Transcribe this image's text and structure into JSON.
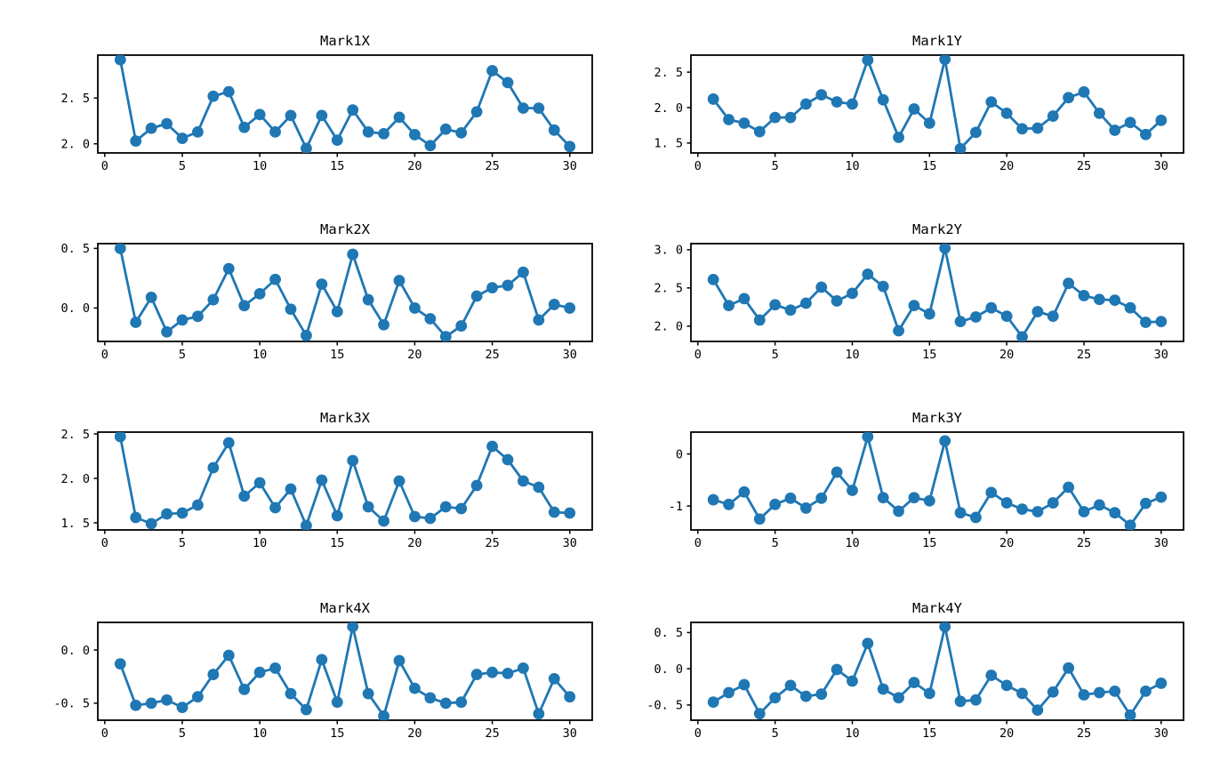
{
  "figure": {
    "background": "#ffffff",
    "spine_color": "#000000",
    "accent_color": "#1f77b4"
  },
  "chart_data": [
    {
      "type": "line",
      "title": "Mark1X",
      "xlabel": "",
      "ylabel": "",
      "grid": false,
      "legend": "none",
      "marker": "circle",
      "line_color": "#1f77b4",
      "x": [
        1,
        2,
        3,
        4,
        5,
        6,
        7,
        8,
        9,
        10,
        11,
        12,
        13,
        14,
        15,
        16,
        17,
        18,
        19,
        20,
        21,
        22,
        23,
        24,
        25,
        26,
        27,
        28,
        29,
        30
      ],
      "values": [
        2.92,
        2.03,
        2.17,
        2.22,
        2.06,
        2.13,
        2.52,
        2.57,
        2.18,
        2.32,
        2.13,
        2.31,
        1.95,
        2.31,
        2.04,
        2.37,
        2.13,
        2.11,
        2.29,
        2.1,
        1.98,
        2.16,
        2.12,
        2.35,
        2.8,
        2.67,
        2.39,
        2.39,
        2.15,
        1.97
      ],
      "xlim": [
        -0.45,
        31.45
      ],
      "ylim": [
        1.9,
        2.97
      ],
      "xticks": {
        "values": [
          0,
          5,
          10,
          15,
          20,
          25,
          30
        ],
        "labels": [
          "0",
          "5",
          "10",
          "15",
          "20",
          "25",
          "30"
        ]
      },
      "yticks": {
        "values": [
          2.0,
          2.5
        ],
        "labels": [
          "2. 0",
          "2. 5"
        ]
      }
    },
    {
      "type": "line",
      "title": "Mark1Y",
      "xlabel": "",
      "ylabel": "",
      "grid": false,
      "legend": "none",
      "marker": "circle",
      "line_color": "#1f77b4",
      "x": [
        1,
        2,
        3,
        4,
        5,
        6,
        7,
        8,
        9,
        10,
        11,
        12,
        13,
        14,
        15,
        16,
        17,
        18,
        19,
        20,
        21,
        22,
        23,
        24,
        25,
        26,
        27,
        28,
        29,
        30
      ],
      "values": [
        2.12,
        1.83,
        1.78,
        1.66,
        1.86,
        1.86,
        2.05,
        2.18,
        2.08,
        2.05,
        2.67,
        2.11,
        1.58,
        1.98,
        1.78,
        2.68,
        1.42,
        1.65,
        2.08,
        1.92,
        1.7,
        1.71,
        1.88,
        2.14,
        2.22,
        1.92,
        1.68,
        1.79,
        1.62,
        1.82
      ],
      "xlim": [
        -0.45,
        31.45
      ],
      "ylim": [
        1.36,
        2.74
      ],
      "xticks": {
        "values": [
          0,
          5,
          10,
          15,
          20,
          25,
          30
        ],
        "labels": [
          "0",
          "5",
          "10",
          "15",
          "20",
          "25",
          "30"
        ]
      },
      "yticks": {
        "values": [
          1.5,
          2.0,
          2.5
        ],
        "labels": [
          "1. 5",
          "2. 0",
          "2. 5"
        ]
      }
    },
    {
      "type": "line",
      "title": "Mark2X",
      "xlabel": "",
      "ylabel": "",
      "grid": false,
      "legend": "none",
      "marker": "circle",
      "line_color": "#1f77b4",
      "x": [
        1,
        2,
        3,
        4,
        5,
        6,
        7,
        8,
        9,
        10,
        11,
        12,
        13,
        14,
        15,
        16,
        17,
        18,
        19,
        20,
        21,
        22,
        23,
        24,
        25,
        26,
        27,
        28,
        29,
        30
      ],
      "values": [
        0.5,
        -0.12,
        0.09,
        -0.2,
        -0.1,
        -0.07,
        0.07,
        0.33,
        0.02,
        0.12,
        0.24,
        -0.01,
        -0.23,
        0.2,
        -0.03,
        0.45,
        0.07,
        -0.14,
        0.23,
        0.0,
        -0.09,
        -0.24,
        -0.15,
        0.1,
        0.17,
        0.19,
        0.3,
        -0.1,
        0.03,
        0.0
      ],
      "xlim": [
        -0.45,
        31.45
      ],
      "ylim": [
        -0.28,
        0.54
      ],
      "xticks": {
        "values": [
          0,
          5,
          10,
          15,
          20,
          25,
          30
        ],
        "labels": [
          "0",
          "5",
          "10",
          "15",
          "20",
          "25",
          "30"
        ]
      },
      "yticks": {
        "values": [
          0.0,
          0.5
        ],
        "labels": [
          "0. 0",
          "0. 5"
        ]
      }
    },
    {
      "type": "line",
      "title": "Mark2Y",
      "xlabel": "",
      "ylabel": "",
      "grid": false,
      "legend": "none",
      "marker": "circle",
      "line_color": "#1f77b4",
      "x": [
        1,
        2,
        3,
        4,
        5,
        6,
        7,
        8,
        9,
        10,
        11,
        12,
        13,
        14,
        15,
        16,
        17,
        18,
        19,
        20,
        21,
        22,
        23,
        24,
        25,
        26,
        27,
        28,
        29,
        30
      ],
      "values": [
        2.61,
        2.27,
        2.36,
        2.08,
        2.28,
        2.21,
        2.3,
        2.51,
        2.33,
        2.43,
        2.68,
        2.52,
        1.94,
        2.27,
        2.16,
        3.02,
        2.06,
        2.12,
        2.24,
        2.13,
        1.86,
        2.19,
        2.13,
        2.56,
        2.4,
        2.35,
        2.34,
        2.24,
        2.05,
        2.06
      ],
      "xlim": [
        -0.45,
        31.45
      ],
      "ylim": [
        1.8,
        3.08
      ],
      "xticks": {
        "values": [
          0,
          5,
          10,
          15,
          20,
          25,
          30
        ],
        "labels": [
          "0",
          "5",
          "10",
          "15",
          "20",
          "25",
          "30"
        ]
      },
      "yticks": {
        "values": [
          2.0,
          2.5,
          3.0
        ],
        "labels": [
          "2. 0",
          "2. 5",
          "3. 0"
        ]
      }
    },
    {
      "type": "line",
      "title": "Mark3X",
      "xlabel": "",
      "ylabel": "",
      "grid": false,
      "legend": "none",
      "marker": "circle",
      "line_color": "#1f77b4",
      "x": [
        1,
        2,
        3,
        4,
        5,
        6,
        7,
        8,
        9,
        10,
        11,
        12,
        13,
        14,
        15,
        16,
        17,
        18,
        19,
        20,
        21,
        22,
        23,
        24,
        25,
        26,
        27,
        28,
        29,
        30
      ],
      "values": [
        2.47,
        1.56,
        1.49,
        1.6,
        1.61,
        1.7,
        2.12,
        2.4,
        1.8,
        1.95,
        1.67,
        1.88,
        1.47,
        1.98,
        1.58,
        2.2,
        1.68,
        1.52,
        1.97,
        1.57,
        1.55,
        1.68,
        1.66,
        1.92,
        2.36,
        2.21,
        1.97,
        1.9,
        1.62,
        1.61
      ],
      "xlim": [
        -0.45,
        31.45
      ],
      "ylim": [
        1.42,
        2.52
      ],
      "xticks": {
        "values": [
          0,
          5,
          10,
          15,
          20,
          25,
          30
        ],
        "labels": [
          "0",
          "5",
          "10",
          "15",
          "20",
          "25",
          "30"
        ]
      },
      "yticks": {
        "values": [
          1.5,
          2.0,
          2.5
        ],
        "labels": [
          "1. 5",
          "2. 0",
          "2. 5"
        ]
      }
    },
    {
      "type": "line",
      "title": "Mark3Y",
      "xlabel": "",
      "ylabel": "",
      "grid": false,
      "legend": "none",
      "marker": "circle",
      "line_color": "#1f77b4",
      "x": [
        1,
        2,
        3,
        4,
        5,
        6,
        7,
        8,
        9,
        10,
        11,
        12,
        13,
        14,
        15,
        16,
        17,
        18,
        19,
        20,
        21,
        22,
        23,
        24,
        25,
        26,
        27,
        28,
        29,
        30
      ],
      "values": [
        -0.88,
        -0.97,
        -0.73,
        -1.25,
        -0.97,
        -0.85,
        -1.04,
        -0.85,
        -0.35,
        -0.7,
        0.33,
        -0.84,
        -1.1,
        -0.84,
        -0.9,
        0.25,
        -1.13,
        -1.22,
        -0.74,
        -0.94,
        -1.06,
        -1.11,
        -0.94,
        -0.64,
        -1.11,
        -0.98,
        -1.13,
        -1.37,
        -0.95,
        -0.83
      ],
      "xlim": [
        -0.45,
        31.45
      ],
      "ylim": [
        -1.46,
        0.42
      ],
      "xticks": {
        "values": [
          0,
          5,
          10,
          15,
          20,
          25,
          30
        ],
        "labels": [
          "0",
          "5",
          "10",
          "15",
          "20",
          "25",
          "30"
        ]
      },
      "yticks": {
        "values": [
          -1,
          0
        ],
        "labels": [
          "-1",
          "0"
        ]
      }
    },
    {
      "type": "line",
      "title": "Mark4X",
      "xlabel": "",
      "ylabel": "",
      "grid": false,
      "legend": "none",
      "marker": "circle",
      "line_color": "#1f77b4",
      "x": [
        1,
        2,
        3,
        4,
        5,
        6,
        7,
        8,
        9,
        10,
        11,
        12,
        13,
        14,
        15,
        16,
        17,
        18,
        19,
        20,
        21,
        22,
        23,
        24,
        25,
        26,
        27,
        28,
        29,
        30
      ],
      "values": [
        -0.13,
        -0.52,
        -0.5,
        -0.47,
        -0.54,
        -0.44,
        -0.23,
        -0.05,
        -0.37,
        -0.21,
        -0.17,
        -0.41,
        -0.56,
        -0.09,
        -0.49,
        0.22,
        -0.41,
        -0.62,
        -0.1,
        -0.36,
        -0.45,
        -0.5,
        -0.49,
        -0.23,
        -0.21,
        -0.22,
        -0.17,
        -0.6,
        -0.27,
        -0.44
      ],
      "xlim": [
        -0.45,
        31.45
      ],
      "ylim": [
        -0.66,
        0.26
      ],
      "xticks": {
        "values": [
          0,
          5,
          10,
          15,
          20,
          25,
          30
        ],
        "labels": [
          "0",
          "5",
          "10",
          "15",
          "20",
          "25",
          "30"
        ]
      },
      "yticks": {
        "values": [
          -0.5,
          0.0
        ],
        "labels": [
          "-0. 5",
          "0. 0"
        ]
      }
    },
    {
      "type": "line",
      "title": "Mark4Y",
      "xlabel": "",
      "ylabel": "",
      "grid": false,
      "legend": "none",
      "marker": "circle",
      "line_color": "#1f77b4",
      "x": [
        1,
        2,
        3,
        4,
        5,
        6,
        7,
        8,
        9,
        10,
        11,
        12,
        13,
        14,
        15,
        16,
        17,
        18,
        19,
        20,
        21,
        22,
        23,
        24,
        25,
        26,
        27,
        28,
        29,
        30
      ],
      "values": [
        -0.46,
        -0.33,
        -0.22,
        -0.62,
        -0.4,
        -0.23,
        -0.38,
        -0.35,
        -0.01,
        -0.17,
        0.35,
        -0.28,
        -0.4,
        -0.19,
        -0.34,
        0.58,
        -0.45,
        -0.43,
        -0.09,
        -0.23,
        -0.34,
        -0.57,
        -0.32,
        0.01,
        -0.36,
        -0.33,
        -0.31,
        -0.64,
        -0.31,
        -0.2
      ],
      "xlim": [
        -0.45,
        31.45
      ],
      "ylim": [
        -0.71,
        0.64
      ],
      "xticks": {
        "values": [
          0,
          5,
          10,
          15,
          20,
          25,
          30
        ],
        "labels": [
          "0",
          "5",
          "10",
          "15",
          "20",
          "25",
          "30"
        ]
      },
      "yticks": {
        "values": [
          -0.5,
          0.0,
          0.5
        ],
        "labels": [
          "-0. 5",
          "0. 0",
          "0. 5"
        ]
      }
    }
  ]
}
